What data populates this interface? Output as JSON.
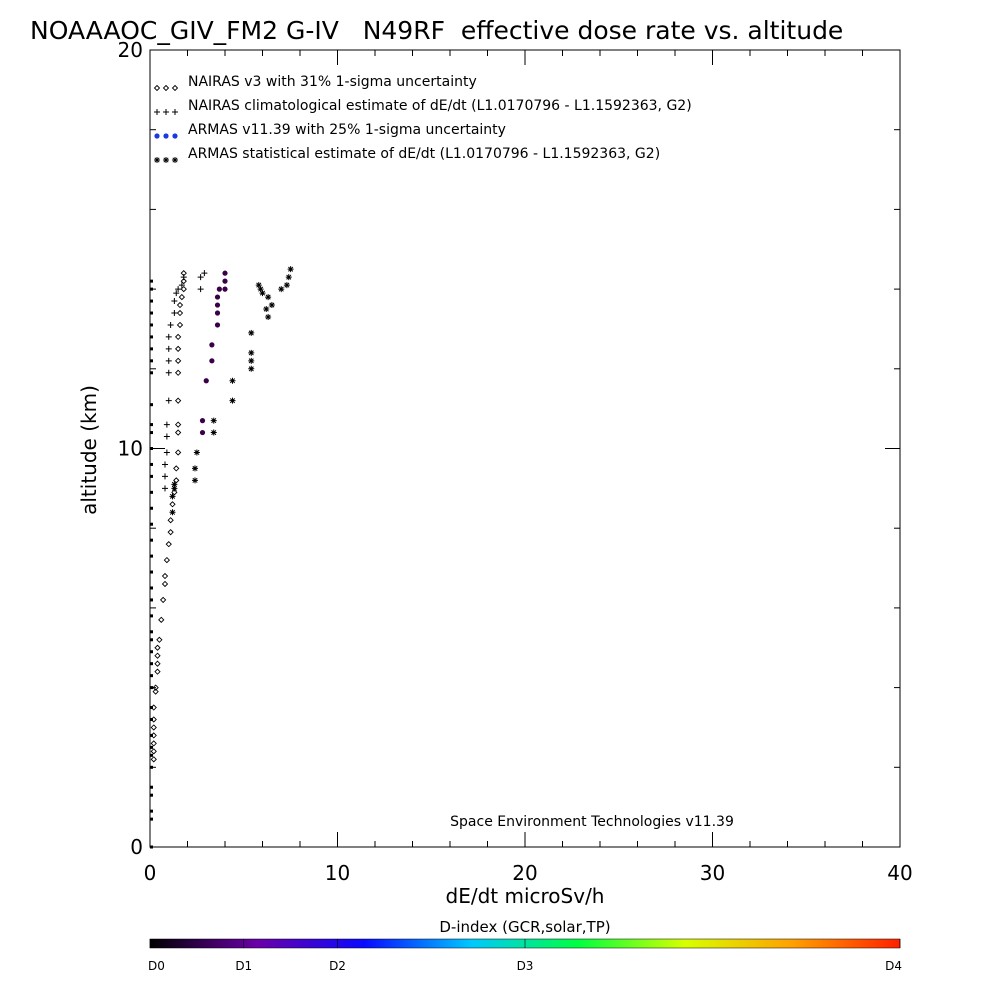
{
  "chart_data": {
    "type": "scatter",
    "title": "NOAAAOC_GIV_FM2 G-IV   N49RF  effective dose rate vs. altitude",
    "xlabel": "dE/dt microSv/h",
    "ylabel": "altitude (km)",
    "xlim": [
      0,
      40
    ],
    "ylim": [
      0,
      20
    ],
    "x_tick_labels": [
      "0",
      "10",
      "20",
      "30",
      "40"
    ],
    "y_tick_labels": [
      "0",
      "10",
      "20"
    ],
    "grid": false,
    "legend_position": "top-left",
    "annotation": "Space Environment Technologies v11.39",
    "series": [
      {
        "name": "NAIRAS v3 with 31% 1-sigma uncertainty",
        "marker": "diamond",
        "color": "#000000",
        "points": [
          [
            0.2,
            2.2
          ],
          [
            0.2,
            2.4
          ],
          [
            0.2,
            2.6
          ],
          [
            0.2,
            2.8
          ],
          [
            0.2,
            3.0
          ],
          [
            0.2,
            3.2
          ],
          [
            0.2,
            3.5
          ],
          [
            0.3,
            3.9
          ],
          [
            0.3,
            4.0
          ],
          [
            0.4,
            4.4
          ],
          [
            0.4,
            4.6
          ],
          [
            0.4,
            4.8
          ],
          [
            0.4,
            5.0
          ],
          [
            0.5,
            5.2
          ],
          [
            0.6,
            5.7
          ],
          [
            0.7,
            6.2
          ],
          [
            0.8,
            6.6
          ],
          [
            0.8,
            6.8
          ],
          [
            0.9,
            7.2
          ],
          [
            1.0,
            7.6
          ],
          [
            1.1,
            7.9
          ],
          [
            1.1,
            8.2
          ],
          [
            1.2,
            8.6
          ],
          [
            1.3,
            8.9
          ],
          [
            1.4,
            9.2
          ],
          [
            1.4,
            9.5
          ],
          [
            1.5,
            9.9
          ],
          [
            1.5,
            10.4
          ],
          [
            1.5,
            10.6
          ],
          [
            1.5,
            11.2
          ],
          [
            1.5,
            11.9
          ],
          [
            1.5,
            12.2
          ],
          [
            1.5,
            12.5
          ],
          [
            1.5,
            12.8
          ],
          [
            1.6,
            13.1
          ],
          [
            1.6,
            13.4
          ],
          [
            1.6,
            13.6
          ],
          [
            1.7,
            13.8
          ],
          [
            1.8,
            14.0
          ],
          [
            1.8,
            14.2
          ],
          [
            1.8,
            14.4
          ]
        ]
      },
      {
        "name": "NAIRAS climatological estimate of dE/dt (L1.0170796 - L1.1592363, G2)",
        "marker": "plus",
        "color": "#000000",
        "points": [
          [
            0.8,
            9.0
          ],
          [
            0.8,
            9.3
          ],
          [
            0.8,
            9.6
          ],
          [
            0.9,
            9.9
          ],
          [
            0.9,
            10.3
          ],
          [
            0.9,
            10.6
          ],
          [
            1.0,
            11.2
          ],
          [
            1.0,
            11.9
          ],
          [
            1.0,
            12.2
          ],
          [
            1.0,
            12.5
          ],
          [
            1.0,
            12.8
          ],
          [
            1.1,
            13.1
          ],
          [
            1.3,
            13.4
          ],
          [
            1.3,
            13.7
          ],
          [
            1.4,
            13.9
          ],
          [
            1.5,
            14.0
          ],
          [
            1.7,
            14.1
          ],
          [
            1.8,
            14.3
          ],
          [
            2.7,
            14.0
          ],
          [
            2.7,
            14.3
          ],
          [
            2.9,
            14.4
          ]
        ]
      },
      {
        "name": "ARMAS v11.39 with 25% 1-sigma uncertainty",
        "marker": "dot",
        "color": "#0030d0",
        "points": [
          [
            2.8,
            10.4
          ],
          [
            2.8,
            10.7
          ],
          [
            3.0,
            11.7
          ],
          [
            3.3,
            12.2
          ],
          [
            3.3,
            12.6
          ],
          [
            3.6,
            13.1
          ],
          [
            3.6,
            13.4
          ],
          [
            3.6,
            13.6
          ],
          [
            3.6,
            13.8
          ],
          [
            3.7,
            14.0
          ],
          [
            4.0,
            14.0
          ],
          [
            4.0,
            14.2
          ],
          [
            4.0,
            14.4
          ]
        ]
      },
      {
        "name": "ARMAS statistical estimate of dE/dt (L1.0170796 - L1.1592363, G2)",
        "marker": "asterisk",
        "color": "#000000",
        "points": [
          [
            1.2,
            8.4
          ],
          [
            1.2,
            8.8
          ],
          [
            1.3,
            9.0
          ],
          [
            1.3,
            9.1
          ],
          [
            2.4,
            9.2
          ],
          [
            2.4,
            9.5
          ],
          [
            2.5,
            9.9
          ],
          [
            3.4,
            10.4
          ],
          [
            3.4,
            10.7
          ],
          [
            4.4,
            11.2
          ],
          [
            4.4,
            11.7
          ],
          [
            5.4,
            12.0
          ],
          [
            5.4,
            12.2
          ],
          [
            5.4,
            12.4
          ],
          [
            5.4,
            12.9
          ],
          [
            6.3,
            13.3
          ],
          [
            6.2,
            13.5
          ],
          [
            6.5,
            13.6
          ],
          [
            6.3,
            13.8
          ],
          [
            6.0,
            13.9
          ],
          [
            5.9,
            14.0
          ],
          [
            5.8,
            14.1
          ],
          [
            7.0,
            14.0
          ],
          [
            7.3,
            14.1
          ],
          [
            7.4,
            14.3
          ],
          [
            7.5,
            14.5
          ]
        ]
      }
    ],
    "flight_trace": {
      "color": "#000000",
      "points": [
        [
          0,
          0.0
        ],
        [
          0,
          0.7
        ],
        [
          0,
          0.9
        ],
        [
          0,
          1.3
        ],
        [
          0,
          1.5
        ],
        [
          0,
          2.0
        ],
        [
          0,
          2.3
        ],
        [
          0,
          2.5
        ],
        [
          0,
          2.8
        ],
        [
          0,
          3.2
        ],
        [
          0,
          3.5
        ],
        [
          0,
          4.0
        ],
        [
          0,
          4.3
        ],
        [
          0,
          4.6
        ],
        [
          0,
          4.9
        ],
        [
          0,
          5.2
        ],
        [
          0,
          5.4
        ],
        [
          0,
          5.8
        ],
        [
          0,
          6.2
        ],
        [
          0,
          6.5
        ],
        [
          0,
          6.9
        ],
        [
          0,
          7.3
        ],
        [
          0,
          7.7
        ],
        [
          0,
          8.1
        ],
        [
          0,
          8.5
        ],
        [
          0,
          8.9
        ],
        [
          0,
          9.3
        ],
        [
          0,
          9.6
        ],
        [
          0,
          10.0
        ],
        [
          0,
          10.4
        ],
        [
          0,
          10.6
        ],
        [
          0,
          11.1
        ],
        [
          0,
          11.9
        ],
        [
          0,
          12.2
        ],
        [
          0,
          12.5
        ],
        [
          0,
          12.8
        ],
        [
          0,
          13.1
        ],
        [
          0,
          13.4
        ],
        [
          0,
          13.7
        ],
        [
          0,
          14.0
        ],
        [
          0,
          14.2
        ]
      ]
    },
    "colorbar": {
      "title": "D-index (GCR,solar,TP)",
      "stops": [
        "#000000",
        "#6a00a8",
        "#0a0aff",
        "#00c8ff",
        "#00ff40",
        "#d8ff00",
        "#ffa000",
        "#ff2000"
      ],
      "labels": [
        {
          "text": "D0",
          "value": 0
        },
        {
          "text": "D1",
          "value": 0.125
        },
        {
          "text": "D2",
          "value": 0.25
        },
        {
          "text": "D3",
          "value": 0.5
        },
        {
          "text": "D4",
          "value": 1
        }
      ]
    }
  }
}
